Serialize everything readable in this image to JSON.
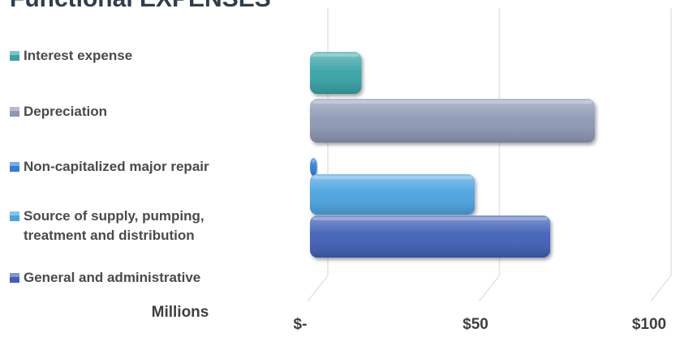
{
  "chart_data": {
    "type": "bar",
    "orientation": "horizontal",
    "title": "Functional EXPENSES",
    "categories": [
      "Interest expense",
      "Depreciation",
      "Non-capitalized major repair",
      "Source of supply, pumping, treatment and distribution",
      "General and administrative"
    ],
    "legend_lines": [
      [
        "Interest expense"
      ],
      [
        "Depreciation"
      ],
      [
        "Non-capitalized major repair"
      ],
      [
        "Source of supply, pumping,",
        "treatment and distribution"
      ],
      [
        "General and administrative"
      ]
    ],
    "values": [
      15,
      83,
      2,
      48,
      70
    ],
    "colors": [
      "#36a3a7",
      "#8d97b4",
      "#2f7ed8",
      "#4aa3e0",
      "#3f5fb7"
    ],
    "units_label": "Millions",
    "xlim": [
      0,
      100
    ],
    "ticks": [
      0,
      50,
      100
    ],
    "tick_labels": [
      "$-",
      "$50",
      "$100"
    ],
    "legend_position": "left",
    "grid": true
  }
}
